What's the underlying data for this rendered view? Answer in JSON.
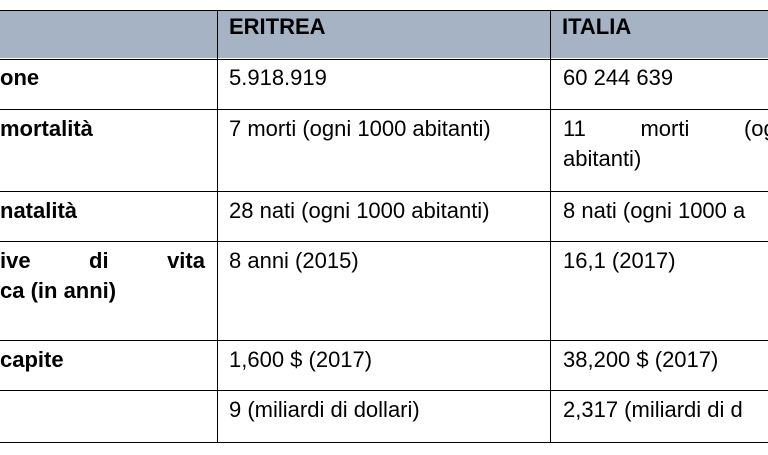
{
  "header": {
    "col1": "",
    "col2": "ERITREA",
    "col3": "ITALIA"
  },
  "rows": [
    {
      "label_lines": [
        "one"
      ],
      "eritrea": [
        "5.918.919"
      ],
      "italia": [
        "60 244 639"
      ]
    },
    {
      "label_lines": [
        "mortalità"
      ],
      "eritrea": [
        "7 morti (ogni 1000 abitanti)"
      ],
      "italia": [
        "11",
        "morti",
        "(ogn",
        "abitanti)"
      ]
    },
    {
      "label_lines": [
        "natalità"
      ],
      "eritrea": [
        "28 nati (ogni 1000 abitanti)"
      ],
      "italia": [
        "8 nati (ogni 1000 a"
      ]
    },
    {
      "label_lines": [
        "ive",
        "di",
        "vita",
        "ca (in anni)"
      ],
      "eritrea": [
        "8 anni (2015)"
      ],
      "italia": [
        "16,1 (2017)"
      ]
    },
    {
      "label_lines": [
        "capite"
      ],
      "eritrea": [
        "1,600 $ (2017)"
      ],
      "italia": [
        "38,200 $ (2017)"
      ]
    },
    {
      "label_lines": [
        ""
      ],
      "eritrea": [
        "9 (miliardi di dollari)"
      ],
      "italia": [
        "2,317 (miliardi di d"
      ]
    }
  ]
}
